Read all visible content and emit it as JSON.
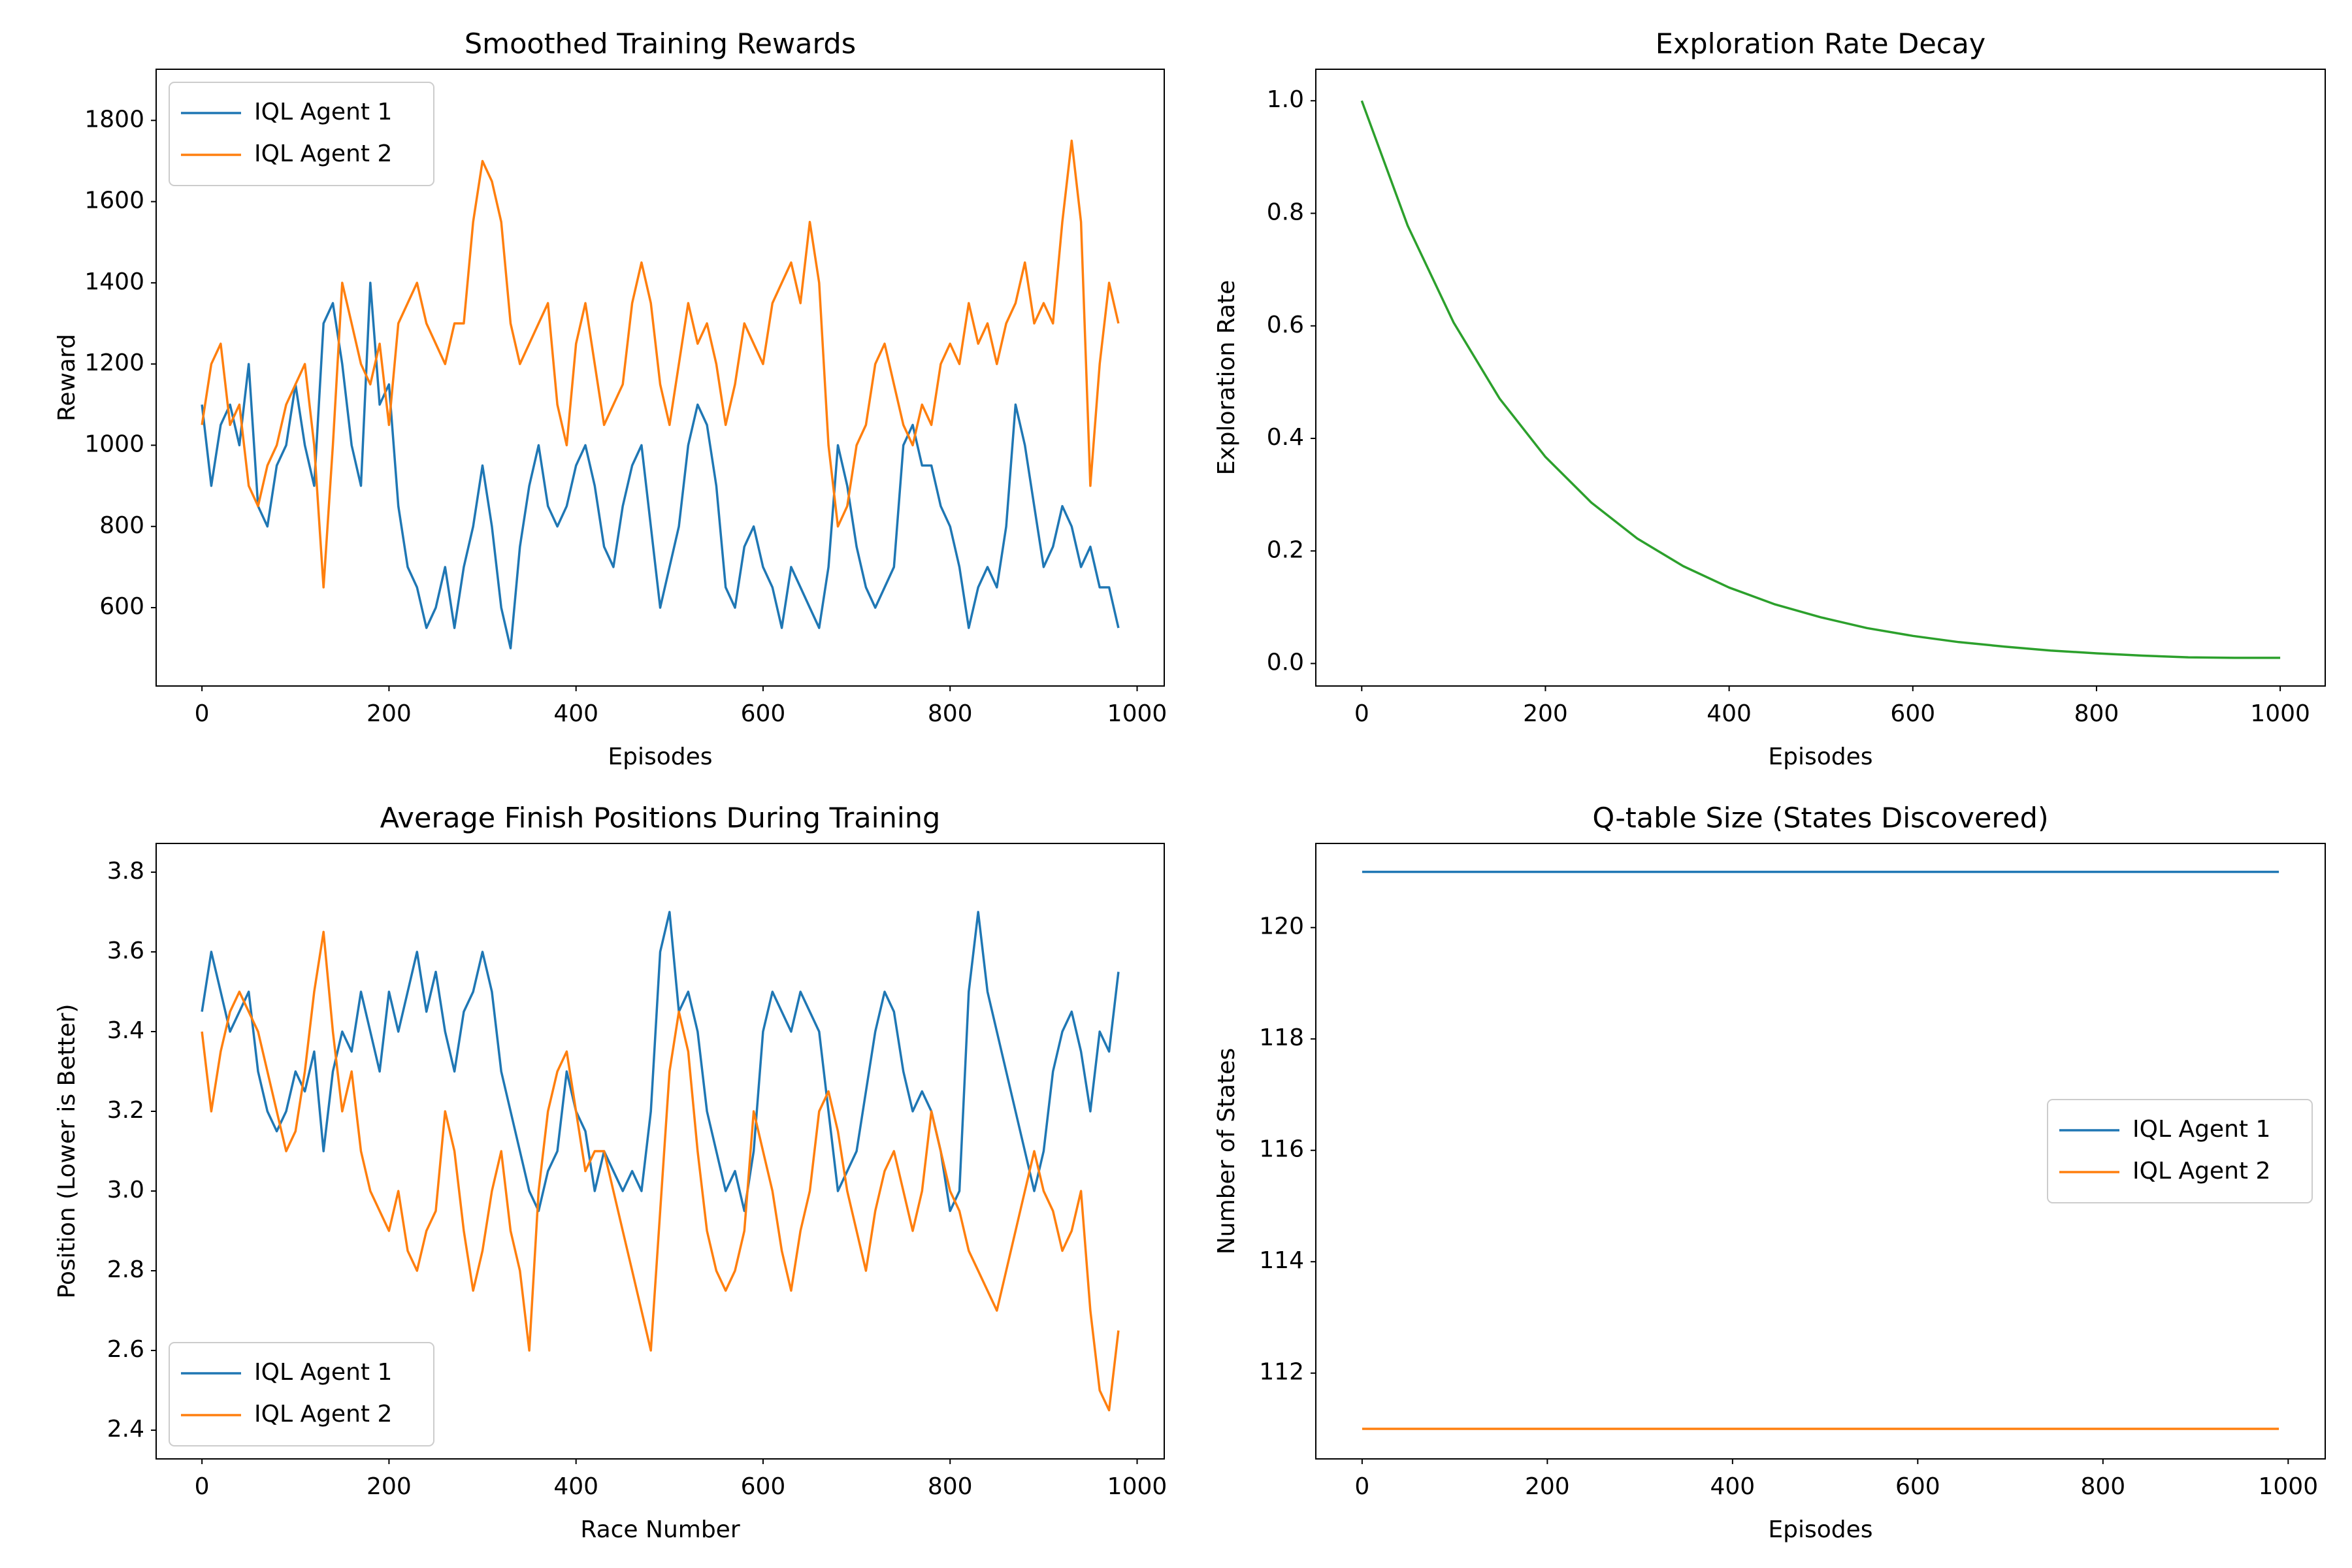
{
  "chart_data": [
    {
      "type": "line",
      "title": "Smoothed Training Rewards",
      "xlabel": "Episodes",
      "ylabel": "Reward",
      "x": [
        0,
        10,
        20,
        30,
        40,
        50,
        60,
        70,
        80,
        90,
        100,
        110,
        120,
        130,
        140,
        150,
        160,
        170,
        180,
        190,
        200,
        210,
        220,
        230,
        240,
        250,
        260,
        270,
        280,
        290,
        300,
        310,
        320,
        330,
        340,
        350,
        360,
        370,
        380,
        390,
        400,
        410,
        420,
        430,
        440,
        450,
        460,
        470,
        480,
        490,
        500,
        510,
        520,
        530,
        540,
        550,
        560,
        570,
        580,
        590,
        600,
        610,
        620,
        630,
        640,
        650,
        660,
        670,
        680,
        690,
        700,
        710,
        720,
        730,
        740,
        750,
        760,
        770,
        780,
        790,
        800,
        810,
        820,
        830,
        840,
        850,
        860,
        870,
        880,
        890,
        900,
        910,
        920,
        930,
        940,
        950,
        960,
        970,
        980
      ],
      "series": [
        {
          "name": "IQL Agent 1",
          "color": "#1f77b4",
          "values": [
            1100,
            900,
            1050,
            1100,
            1000,
            1200,
            850,
            800,
            950,
            1000,
            1150,
            1000,
            900,
            1300,
            1350,
            1200,
            1000,
            900,
            1400,
            1100,
            1150,
            850,
            700,
            650,
            550,
            600,
            700,
            550,
            700,
            800,
            950,
            800,
            600,
            500,
            750,
            900,
            1000,
            850,
            800,
            850,
            950,
            1000,
            900,
            750,
            700,
            850,
            950,
            1000,
            800,
            600,
            700,
            800,
            1000,
            1100,
            1050,
            900,
            650,
            600,
            750,
            800,
            700,
            650,
            550,
            700,
            650,
            600,
            550,
            700,
            1000,
            900,
            750,
            650,
            600,
            650,
            700,
            1000,
            1050,
            950,
            950,
            850,
            800,
            700,
            550,
            650,
            700,
            650,
            800,
            1100,
            1000,
            850,
            700,
            750,
            850,
            800,
            700,
            750,
            650,
            650,
            550
          ]
        },
        {
          "name": "IQL Agent 2",
          "color": "#ff7f0e",
          "values": [
            1050,
            1200,
            1250,
            1050,
            1100,
            900,
            850,
            950,
            1000,
            1100,
            1150,
            1200,
            1000,
            650,
            1000,
            1400,
            1300,
            1200,
            1150,
            1250,
            1050,
            1300,
            1350,
            1400,
            1300,
            1250,
            1200,
            1300,
            1300,
            1550,
            1700,
            1650,
            1550,
            1300,
            1200,
            1250,
            1300,
            1350,
            1100,
            1000,
            1250,
            1350,
            1200,
            1050,
            1100,
            1150,
            1350,
            1450,
            1350,
            1150,
            1050,
            1200,
            1350,
            1250,
            1300,
            1200,
            1050,
            1150,
            1300,
            1250,
            1200,
            1350,
            1400,
            1450,
            1350,
            1550,
            1400,
            1000,
            800,
            850,
            1000,
            1050,
            1200,
            1250,
            1150,
            1050,
            1000,
            1100,
            1050,
            1200,
            1250,
            1200,
            1350,
            1250,
            1300,
            1200,
            1300,
            1350,
            1450,
            1300,
            1350,
            1300,
            1550,
            1750,
            1550,
            900,
            1200,
            1400,
            1300
          ]
        }
      ],
      "xlim": [
        -49,
        1029
      ],
      "ylim": [
        407,
        1926
      ],
      "xticks": [
        0,
        200,
        400,
        600,
        800,
        1000
      ],
      "yticks": [
        600,
        800,
        1000,
        1200,
        1400,
        1600,
        1800
      ],
      "legend": "upper left"
    },
    {
      "type": "line",
      "title": "Exploration Rate Decay",
      "xlabel": "Episodes",
      "ylabel": "Exploration Rate",
      "x": [
        0,
        50,
        100,
        150,
        200,
        250,
        300,
        350,
        400,
        450,
        500,
        550,
        600,
        650,
        700,
        750,
        800,
        850,
        900,
        950,
        1000
      ],
      "series": [
        {
          "color": "#2ca02c",
          "values": [
            1,
            0.778,
            0.606,
            0.471,
            0.367,
            0.286,
            0.222,
            0.173,
            0.135,
            0.105,
            0.082,
            0.063,
            0.049,
            0.038,
            0.03,
            0.023,
            0.018,
            0.014,
            0.011,
            0.01,
            0.01
          ]
        }
      ],
      "xlim": [
        -50,
        1049
      ],
      "ylim": [
        -0.04,
        1.056
      ],
      "xticks": [
        0,
        200,
        400,
        600,
        800,
        1000
      ],
      "yticks": [
        {
          "value": 0,
          "label": "0.0"
        },
        0.2,
        0.4,
        0.6,
        0.8,
        {
          "value": 1,
          "label": "1.0"
        }
      ]
    },
    {
      "type": "line",
      "title": "Average Finish Positions During Training",
      "xlabel": "Race Number",
      "ylabel": "Position (Lower is Better)",
      "x": [
        0,
        10,
        20,
        30,
        40,
        50,
        60,
        70,
        80,
        90,
        100,
        110,
        120,
        130,
        140,
        150,
        160,
        170,
        180,
        190,
        200,
        210,
        220,
        230,
        240,
        250,
        260,
        270,
        280,
        290,
        300,
        310,
        320,
        330,
        340,
        350,
        360,
        370,
        380,
        390,
        400,
        410,
        420,
        430,
        440,
        450,
        460,
        470,
        480,
        490,
        500,
        510,
        520,
        530,
        540,
        550,
        560,
        570,
        580,
        590,
        600,
        610,
        620,
        630,
        640,
        650,
        660,
        670,
        680,
        690,
        700,
        710,
        720,
        730,
        740,
        750,
        760,
        770,
        780,
        790,
        800,
        810,
        820,
        830,
        840,
        850,
        860,
        870,
        880,
        890,
        900,
        910,
        920,
        930,
        940,
        950,
        960,
        970,
        980
      ],
      "series": [
        {
          "name": "IQL Agent 1",
          "color": "#1f77b4",
          "values": [
            3.45,
            3.6,
            3.5,
            3.4,
            3.45,
            3.5,
            3.3,
            3.2,
            3.15,
            3.2,
            3.3,
            3.25,
            3.35,
            3.1,
            3.3,
            3.4,
            3.35,
            3.5,
            3.4,
            3.3,
            3.5,
            3.4,
            3.5,
            3.6,
            3.45,
            3.55,
            3.4,
            3.3,
            3.45,
            3.5,
            3.6,
            3.5,
            3.3,
            3.2,
            3.1,
            3.0,
            2.95,
            3.05,
            3.1,
            3.3,
            3.2,
            3.15,
            3.0,
            3.1,
            3.05,
            3.0,
            3.05,
            3.0,
            3.2,
            3.6,
            3.7,
            3.45,
            3.5,
            3.4,
            3.2,
            3.1,
            3.0,
            3.05,
            2.95,
            3.1,
            3.4,
            3.5,
            3.45,
            3.4,
            3.5,
            3.45,
            3.4,
            3.2,
            3.0,
            3.05,
            3.1,
            3.25,
            3.4,
            3.5,
            3.45,
            3.3,
            3.2,
            3.25,
            3.2,
            3.1,
            2.95,
            3.0,
            3.5,
            3.7,
            3.5,
            3.4,
            3.3,
            3.2,
            3.1,
            3.0,
            3.1,
            3.3,
            3.4,
            3.45,
            3.35,
            3.2,
            3.4,
            3.35,
            3.55
          ]
        },
        {
          "name": "IQL Agent 2",
          "color": "#ff7f0e",
          "values": [
            3.4,
            3.2,
            3.35,
            3.45,
            3.5,
            3.45,
            3.4,
            3.3,
            3.2,
            3.1,
            3.15,
            3.3,
            3.5,
            3.65,
            3.4,
            3.2,
            3.3,
            3.1,
            3.0,
            2.95,
            2.9,
            3.0,
            2.85,
            2.8,
            2.9,
            2.95,
            3.2,
            3.1,
            2.9,
            2.75,
            2.85,
            3.0,
            3.1,
            2.9,
            2.8,
            2.6,
            3.0,
            3.2,
            3.3,
            3.35,
            3.2,
            3.05,
            3.1,
            3.1,
            3.0,
            2.9,
            2.8,
            2.7,
            2.6,
            2.95,
            3.3,
            3.45,
            3.35,
            3.1,
            2.9,
            2.8,
            2.75,
            2.8,
            2.9,
            3.2,
            3.1,
            3.0,
            2.85,
            2.75,
            2.9,
            3.0,
            3.2,
            3.25,
            3.15,
            3.0,
            2.9,
            2.8,
            2.95,
            3.05,
            3.1,
            3.0,
            2.9,
            3.0,
            3.2,
            3.1,
            3.0,
            2.95,
            2.85,
            2.8,
            2.75,
            2.7,
            2.8,
            2.9,
            3.0,
            3.1,
            3.0,
            2.95,
            2.85,
            2.9,
            3.0,
            2.7,
            2.5,
            2.45,
            2.65
          ]
        }
      ],
      "xlim": [
        -49,
        1029
      ],
      "ylim": [
        2.328,
        3.872
      ],
      "xticks": [
        0,
        200,
        400,
        600,
        800,
        1000
      ],
      "yticks": [
        2.4,
        2.6,
        2.8,
        {
          "value": 3,
          "label": "3.0"
        },
        3.2,
        3.4,
        3.6,
        3.8
      ],
      "legend": "lower left"
    },
    {
      "type": "line",
      "title": "Q-table Size (States Discovered)",
      "xlabel": "Episodes",
      "ylabel": "Number of States",
      "x": [
        0,
        990
      ],
      "series": [
        {
          "name": "IQL Agent 1",
          "color": "#1f77b4",
          "values": [
            121,
            121
          ]
        },
        {
          "name": "IQL Agent 2",
          "color": "#ff7f0e",
          "values": [
            111,
            111
          ]
        }
      ],
      "xlim": [
        -50,
        1040
      ],
      "ylim": [
        110.46,
        121.51
      ],
      "xticks": [
        0,
        200,
        400,
        600,
        800,
        1000
      ],
      "yticks": [
        112,
        114,
        116,
        118,
        120
      ],
      "legend": "center right"
    }
  ]
}
